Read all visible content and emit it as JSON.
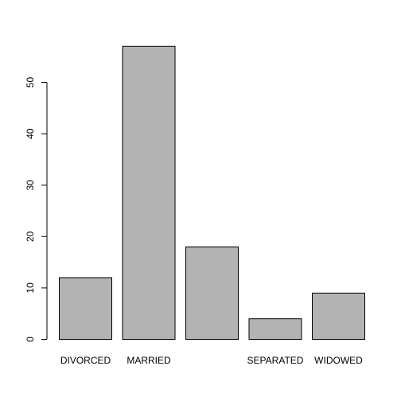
{
  "chart_data": {
    "type": "bar",
    "title": "",
    "xlabel": "",
    "ylabel": "",
    "categories": [
      "DIVORCED",
      "MARRIED",
      "",
      "SEPARATED",
      "WIDOWED"
    ],
    "values": [
      12,
      57,
      18,
      4,
      9
    ],
    "ylim": [
      0,
      57
    ],
    "yticks": [
      0,
      10,
      20,
      30,
      40,
      50
    ],
    "yticks_text": [
      "0",
      "10",
      "20",
      "30",
      "40",
      "50"
    ],
    "grid": false,
    "legend": "none",
    "bar_fill": "#b3b3b3",
    "bar_stroke": "#000000"
  }
}
